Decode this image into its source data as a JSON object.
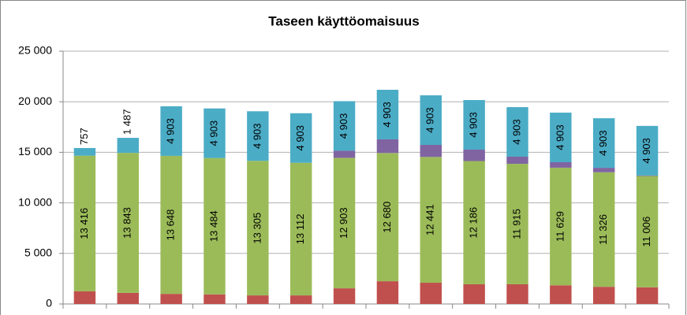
{
  "chart_data": {
    "type": "stacked_bar",
    "title": "Taseen käyttöomaisuus",
    "categories": [
      null,
      null,
      null,
      null,
      null,
      null,
      null,
      null,
      null,
      null,
      null,
      null,
      null,
      null
    ],
    "series": [
      {
        "color": "#c0504d",
        "values": [
          1250,
          1100,
          1000,
          950,
          850,
          850,
          1550,
          2250,
          2100,
          1950,
          1950,
          1850,
          1700,
          1650
        ]
      },
      {
        "color": "#9bbb59",
        "values": [
          13416,
          13843,
          13648,
          13484,
          13305,
          13112,
          12903,
          12680,
          12441,
          12186,
          11915,
          11629,
          11326,
          11006
        ],
        "value_labels": [
          "13 416",
          "13 843",
          "13 648",
          "13 484",
          "13 305",
          "13 112",
          "12 903",
          "12 680",
          "12 441",
          "12 186",
          "11 915",
          "11 629",
          "11 326",
          "11 006"
        ]
      },
      {
        "color": "#8064a2",
        "values": [
          0,
          0,
          0,
          0,
          0,
          0,
          700,
          1350,
          1190,
          1130,
          700,
          540,
          440,
          50
        ]
      },
      {
        "color": "#4bacc6",
        "values": [
          757,
          1487,
          4903,
          4903,
          4903,
          4903,
          4903,
          4903,
          4903,
          4903,
          4903,
          4903,
          4903,
          4903
        ],
        "value_labels": [
          "757",
          "1 487",
          "4 903",
          "4 903",
          "4 903",
          "4 903",
          "4 903",
          "4 903",
          "4 903",
          "4 903",
          "4 903",
          "4 903",
          "4 903",
          "4 903"
        ]
      }
    ],
    "ylim": [
      0,
      25000
    ],
    "yticks": [
      {
        "value": 0,
        "label": "0"
      },
      {
        "value": 5000,
        "label": "5 000"
      },
      {
        "value": 10000,
        "label": "10 000"
      },
      {
        "value": 15000,
        "label": "15 000"
      },
      {
        "value": 20000,
        "label": "20 000"
      },
      {
        "value": 25000,
        "label": "25 000"
      }
    ],
    "grid": true
  }
}
